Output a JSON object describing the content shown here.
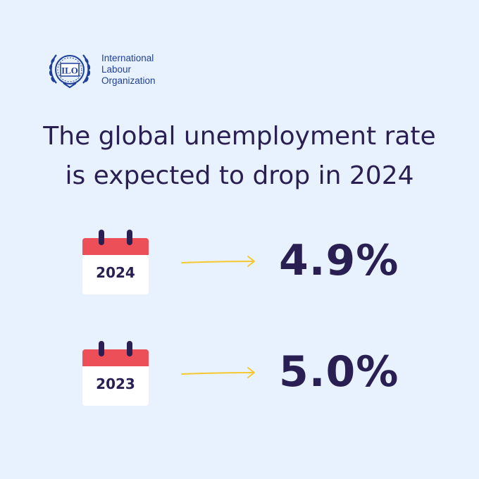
{
  "logo": {
    "line1": "International",
    "line2": "Labour",
    "line3": "Organization",
    "emblem_text": "ILO"
  },
  "headline": {
    "line1": "The global unemployment rate",
    "line2": "is expected to drop in 2024"
  },
  "rows": [
    {
      "year": "2024",
      "value": "4.9%"
    },
    {
      "year": "2023",
      "value": "5.0%"
    }
  ],
  "colors": {
    "background": "#e8f2fe",
    "text": "#2a1f52",
    "logo_blue": "#1f3f9a",
    "calendar_red": "#ec4f58",
    "arrow_yellow": "#f5c832"
  },
  "icons": [
    "ilo-emblem-icon",
    "calendar-icon",
    "arrow-right-icon"
  ]
}
